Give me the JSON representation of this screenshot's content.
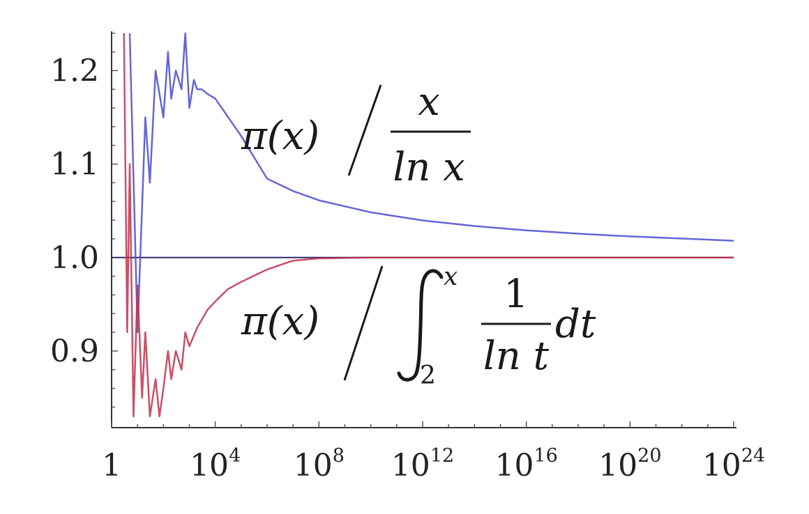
{
  "chart_data": {
    "type": "line",
    "title": "",
    "xlabel": "",
    "ylabel": "",
    "x_scale": "log10",
    "xlim": [
      1,
      1e+24
    ],
    "ylim": [
      0.82,
      1.25
    ],
    "grid": false,
    "x_ticks": [
      {
        "value": 1,
        "base": "1",
        "exp": ""
      },
      {
        "value": 10000.0,
        "base": "10",
        "exp": "4"
      },
      {
        "value": 100000000.0,
        "base": "10",
        "exp": "8"
      },
      {
        "value": 1000000000000.0,
        "base": "10",
        "exp": "12"
      },
      {
        "value": 1e+16,
        "base": "10",
        "exp": "16"
      },
      {
        "value": 1e+20,
        "base": "10",
        "exp": "20"
      },
      {
        "value": 1e+24,
        "base": "10",
        "exp": "24"
      }
    ],
    "y_ticks": [
      {
        "value": 0.9,
        "label": "0.9"
      },
      {
        "value": 1.0,
        "label": "1.0"
      },
      {
        "value": 1.1,
        "label": "1.1"
      },
      {
        "value": 1.2,
        "label": "1.2"
      }
    ],
    "reference_line": {
      "y": 1.0,
      "color": "#2b2b6e"
    },
    "series": [
      {
        "color": "#4a4ad0",
        "label_parts": [
          "π(x)",
          "x",
          "ln x"
        ],
        "x": [
          5,
          10,
          20,
          30,
          50,
          100,
          150,
          200,
          300,
          500,
          700,
          1000,
          1500,
          2000,
          3000,
          5000,
          10000.0,
          100000.0,
          1000000.0,
          10000000.0,
          100000000.0,
          10000000000.0,
          1000000000000.0,
          100000000000000.0,
          1e+16,
          1e+18,
          1e+20,
          1e+22,
          1e+24
        ],
        "y": [
          1.24,
          0.92,
          1.15,
          1.08,
          1.2,
          1.15,
          1.22,
          1.17,
          1.2,
          1.18,
          1.24,
          1.16,
          1.19,
          1.18,
          1.18,
          1.175,
          1.17,
          1.13,
          1.0844,
          1.0711,
          1.0612,
          1.0483,
          1.0397,
          1.0337,
          1.0291,
          1.0255,
          1.0226,
          1.0203,
          1.018
        ]
      },
      {
        "color": "#c0304a",
        "label_parts": [
          "π(x)",
          "x",
          "2",
          "1",
          "ln t",
          "dt"
        ],
        "x": [
          3,
          4,
          5,
          7,
          10,
          15,
          20,
          30,
          50,
          70,
          100,
          150,
          200,
          300,
          500,
          700,
          1000,
          2000,
          5000,
          10000.0,
          30000.0,
          100000.0,
          1000000.0,
          10000000.0,
          100000000.0,
          10000000000.0,
          1000000000000.0,
          1e+16,
          1e+24
        ],
        "y": [
          1.24,
          0.92,
          1.1,
          0.83,
          0.97,
          0.85,
          0.92,
          0.83,
          0.87,
          0.83,
          0.86,
          0.9,
          0.87,
          0.9,
          0.88,
          0.92,
          0.905,
          0.925,
          0.944,
          0.953,
          0.966,
          0.974,
          0.9872,
          0.9967,
          0.9991,
          0.99996,
          0.99999,
          1.0,
          1.0
        ]
      }
    ]
  }
}
